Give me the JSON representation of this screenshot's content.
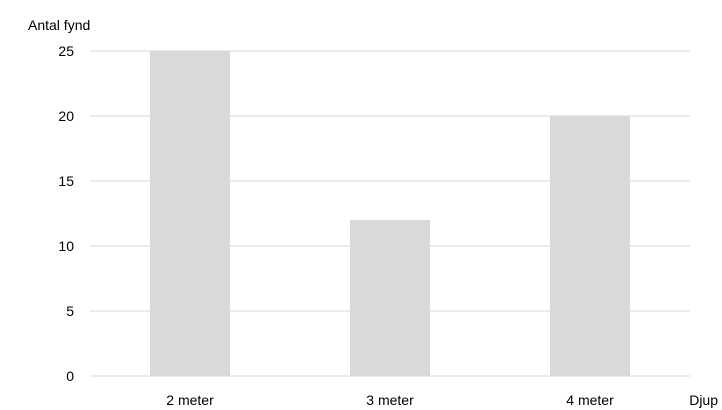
{
  "chart_data": {
    "type": "bar",
    "categories": [
      "2 meter",
      "3 meter",
      "4 meter"
    ],
    "values": [
      25,
      12,
      20
    ],
    "title": "",
    "xlabel": "Djup",
    "ylabel": "Antal fynd",
    "ylim": [
      0,
      25
    ],
    "yticks": [
      "0",
      "5",
      "10",
      "15",
      "20",
      "25"
    ],
    "grid": true,
    "bar_color": "#d9d9d9",
    "grid_color": "#d9d9d9"
  }
}
